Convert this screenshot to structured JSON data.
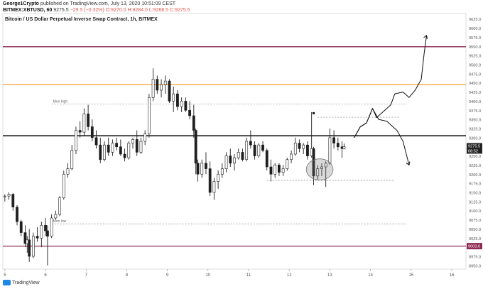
{
  "header": {
    "author": "George1Crypto",
    "published_text": "published on TradingView.com, July 13, 2020 10:51:09 CEST",
    "symbol": "BITMEX:XBTUSD, 60",
    "last": "9275.5",
    "change": "−29.5 (−0.32%)",
    "ohlc": "O:9270.0 H:9284.0 L:9268.5 C:9275.5"
  },
  "footer": {
    "brand": "TradingView"
  },
  "chart_data": {
    "type": "line",
    "title": "Bitcoin / US Dollar Perpetual Inverse Swap Contract, 1h, BITMEX",
    "xlabel": "",
    "ylabel": "",
    "x_ticks": [
      "5",
      "6",
      "7",
      "8",
      "9",
      "10",
      "11",
      "12",
      "13",
      "14",
      "15",
      "16"
    ],
    "y_ticks": [
      8950,
      8975,
      9000,
      9025,
      9050,
      9075,
      9100,
      9125,
      9150,
      9175,
      9200,
      9225,
      9250,
      9275,
      9300,
      9325,
      9350,
      9375,
      9400,
      9425,
      9450,
      9475,
      9500,
      9525,
      9550,
      9575,
      9600,
      9625
    ],
    "ylim": [
      8940,
      9640
    ],
    "xlim": [
      4.95,
      16.35
    ],
    "price_tag": "9275.5",
    "price_tag_time": "08:52",
    "colors": {
      "candle": "#1f1f1f",
      "resistance_high": "#8e2a53",
      "orange_level": "#f0a030",
      "pivot": "#000000",
      "support_low": "#8e2a53",
      "dashed": "#888888"
    },
    "levels": [
      {
        "name": "upper-resistance",
        "y": 9549,
        "color": "#8e2a53",
        "style": "solid",
        "width": 1.3
      },
      {
        "name": "orange-level",
        "y": 9445,
        "color": "#f0a030",
        "style": "solid",
        "width": 1.3
      },
      {
        "name": "pivot-level",
        "y": 9305,
        "color": "#000000",
        "style": "solid",
        "width": 1.5
      },
      {
        "name": "lower-support",
        "y": 9003,
        "color": "#8e2a53",
        "style": "solid",
        "width": 1.3,
        "tag": "9003.0"
      }
    ],
    "dashed_lines": [
      {
        "name": "mon-high-line",
        "y": 9392,
        "x1": 6.15,
        "x2": 14.9,
        "label": "Mon high"
      },
      {
        "name": "mon-low-line",
        "y": 9064,
        "x1": 6.15,
        "x2": 14.9,
        "label": "Mon low"
      },
      {
        "name": "upper-mini-line",
        "y": 9356,
        "x1": 12.7,
        "x2": 14.7
      },
      {
        "name": "lower-mini-line",
        "y": 9183,
        "x1": 11.45,
        "x2": 14.6
      }
    ],
    "ellipse": {
      "cx": 12.75,
      "cy": 9213,
      "rx": 0.33,
      "ry": 29
    },
    "marker": {
      "x": 12.6,
      "y": 9367
    },
    "projection_up": [
      [
        13.6,
        9300
      ],
      [
        13.75,
        9330
      ],
      [
        13.9,
        9340
      ],
      [
        14.05,
        9380
      ],
      [
        14.15,
        9355
      ],
      [
        14.3,
        9370
      ],
      [
        14.5,
        9390
      ],
      [
        14.6,
        9420
      ],
      [
        14.8,
        9425
      ],
      [
        14.95,
        9410
      ],
      [
        15.1,
        9430
      ],
      [
        15.25,
        9460
      ],
      [
        15.32,
        9530
      ],
      [
        15.38,
        9580
      ]
    ],
    "projection_down": [
      [
        13.6,
        9300
      ],
      [
        13.75,
        9330
      ],
      [
        13.9,
        9340
      ],
      [
        14.05,
        9380
      ],
      [
        14.2,
        9350
      ],
      [
        14.4,
        9345
      ],
      [
        14.65,
        9320
      ],
      [
        14.8,
        9290
      ],
      [
        14.95,
        9225
      ]
    ],
    "candles": [
      [
        5.0,
        9138,
        9145,
        9125,
        9140
      ],
      [
        5.1,
        9140,
        9150,
        9130,
        9145
      ],
      [
        5.2,
        9145,
        9148,
        9100,
        9110
      ],
      [
        5.3,
        9110,
        9115,
        9060,
        9070
      ],
      [
        5.4,
        9070,
        9075,
        9030,
        9040
      ],
      [
        5.5,
        9040,
        9060,
        9000,
        9010
      ],
      [
        5.55,
        9010,
        9030,
        8985,
        9020
      ],
      [
        5.6,
        9020,
        9050,
        8960,
        8975
      ],
      [
        5.7,
        8975,
        9040,
        8970,
        9030
      ],
      [
        5.8,
        9030,
        9055,
        9015,
        9025
      ],
      [
        5.9,
        9025,
        9070,
        9000,
        9060
      ],
      [
        6.0,
        9060,
        9080,
        9030,
        9045
      ],
      [
        6.05,
        9045,
        9060,
        8950,
        9030
      ],
      [
        6.15,
        9030,
        9090,
        9025,
        9080
      ],
      [
        6.25,
        9080,
        9100,
        9075,
        9090
      ],
      [
        6.35,
        9090,
        9140,
        9085,
        9135
      ],
      [
        6.45,
        9135,
        9210,
        9130,
        9200
      ],
      [
        6.55,
        9200,
        9230,
        9190,
        9215
      ],
      [
        6.65,
        9215,
        9280,
        9210,
        9265
      ],
      [
        6.75,
        9265,
        9330,
        9255,
        9320
      ],
      [
        6.85,
        9320,
        9345,
        9300,
        9315
      ],
      [
        6.95,
        9315,
        9380,
        9305,
        9365
      ],
      [
        7.05,
        9365,
        9390,
        9320,
        9330
      ],
      [
        7.15,
        9330,
        9350,
        9290,
        9300
      ],
      [
        7.25,
        9300,
        9320,
        9270,
        9280
      ],
      [
        7.35,
        9280,
        9300,
        9230,
        9240
      ],
      [
        7.45,
        9240,
        9290,
        9235,
        9280
      ],
      [
        7.55,
        9280,
        9300,
        9250,
        9260
      ],
      [
        7.65,
        9260,
        9295,
        9250,
        9285
      ],
      [
        7.75,
        9285,
        9300,
        9265,
        9275
      ],
      [
        7.85,
        9275,
        9295,
        9250,
        9255
      ],
      [
        7.95,
        9255,
        9270,
        9235,
        9245
      ],
      [
        8.05,
        9245,
        9290,
        9240,
        9285
      ],
      [
        8.15,
        9285,
        9300,
        9270,
        9295
      ],
      [
        8.25,
        9295,
        9320,
        9250,
        9260
      ],
      [
        8.35,
        9260,
        9300,
        9255,
        9290
      ],
      [
        8.45,
        9290,
        9320,
        9280,
        9310
      ],
      [
        8.55,
        9310,
        9420,
        9300,
        9410
      ],
      [
        8.65,
        9410,
        9490,
        9400,
        9460
      ],
      [
        8.75,
        9460,
        9470,
        9420,
        9430
      ],
      [
        8.85,
        9430,
        9460,
        9410,
        9445
      ],
      [
        8.95,
        9445,
        9470,
        9420,
        9455
      ],
      [
        9.05,
        9455,
        9460,
        9395,
        9400
      ],
      [
        9.15,
        9400,
        9440,
        9370,
        9420
      ],
      [
        9.25,
        9420,
        9430,
        9375,
        9385
      ],
      [
        9.35,
        9385,
        9410,
        9370,
        9400
      ],
      [
        9.45,
        9400,
        9410,
        9370,
        9375
      ],
      [
        9.55,
        9375,
        9400,
        9350,
        9360
      ],
      [
        9.65,
        9360,
        9390,
        9300,
        9320
      ],
      [
        9.7,
        9320,
        9325,
        9200,
        9230
      ],
      [
        9.75,
        9230,
        9240,
        9180,
        9200
      ],
      [
        9.85,
        9200,
        9240,
        9190,
        9230
      ],
      [
        9.95,
        9230,
        9260,
        9200,
        9215
      ],
      [
        10.05,
        9215,
        9235,
        9140,
        9150
      ],
      [
        10.15,
        9150,
        9190,
        9130,
        9180
      ],
      [
        10.25,
        9180,
        9210,
        9160,
        9200
      ],
      [
        10.35,
        9200,
        9230,
        9190,
        9215
      ],
      [
        10.45,
        9215,
        9260,
        9205,
        9250
      ],
      [
        10.55,
        9250,
        9270,
        9220,
        9230
      ],
      [
        10.65,
        9230,
        9255,
        9210,
        9245
      ],
      [
        10.75,
        9245,
        9270,
        9240,
        9260
      ],
      [
        10.85,
        9260,
        9270,
        9235,
        9240
      ],
      [
        10.95,
        9240,
        9300,
        9235,
        9290
      ],
      [
        11.05,
        9290,
        9320,
        9270,
        9280
      ],
      [
        11.15,
        9280,
        9290,
        9240,
        9250
      ],
      [
        11.25,
        9250,
        9285,
        9245,
        9280
      ],
      [
        11.35,
        9280,
        9290,
        9260,
        9265
      ],
      [
        11.45,
        9265,
        9270,
        9210,
        9220
      ],
      [
        11.55,
        9220,
        9240,
        9180,
        9200
      ],
      [
        11.65,
        9200,
        9230,
        9190,
        9225
      ],
      [
        11.75,
        9225,
        9230,
        9195,
        9205
      ],
      [
        11.85,
        9205,
        9225,
        9195,
        9215
      ],
      [
        11.95,
        9215,
        9245,
        9210,
        9240
      ],
      [
        12.05,
        9240,
        9265,
        9230,
        9255
      ],
      [
        12.15,
        9255,
        9300,
        9250,
        9285
      ],
      [
        12.25,
        9285,
        9295,
        9260,
        9270
      ],
      [
        12.35,
        9270,
        9285,
        9255,
        9280
      ],
      [
        12.45,
        9280,
        9290,
        9240,
        9250
      ],
      [
        12.55,
        9250,
        9370,
        9245,
        9270
      ],
      [
        12.6,
        9270,
        9275,
        9170,
        9195
      ],
      [
        12.7,
        9195,
        9225,
        9185,
        9215
      ],
      [
        12.8,
        9215,
        9230,
        9195,
        9220
      ],
      [
        12.9,
        9220,
        9235,
        9165,
        9230
      ],
      [
        13.0,
        9230,
        9325,
        9225,
        9300
      ],
      [
        13.1,
        9300,
        9320,
        9270,
        9285
      ],
      [
        13.2,
        9285,
        9300,
        9265,
        9275
      ],
      [
        13.3,
        9275,
        9290,
        9245,
        9270
      ],
      [
        13.35,
        9270,
        9284,
        9268,
        9275
      ]
    ]
  }
}
